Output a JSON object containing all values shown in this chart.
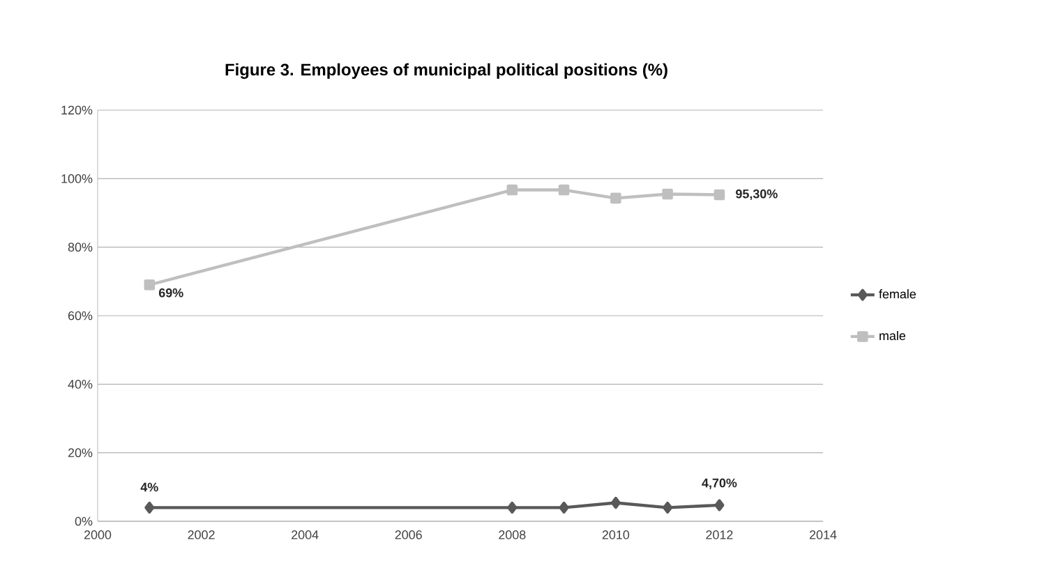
{
  "chart_data": {
    "type": "line",
    "title": "Figure 3. Employees of municipal political positions (%)",
    "x": [
      2001,
      2008,
      2009,
      2010,
      2011,
      2012
    ],
    "series": [
      {
        "name": "female",
        "color": "#595959",
        "marker": "diamond",
        "values": [
          4,
          4,
          4,
          5.4,
          4,
          4.7
        ],
        "value_labels": [
          "4%",
          null,
          null,
          null,
          null,
          "4,70%"
        ]
      },
      {
        "name": "male",
        "color": "#bfbfbf",
        "marker": "square",
        "values": [
          69,
          96.7,
          96.7,
          94.3,
          95.5,
          95.3
        ],
        "value_labels": [
          "69%",
          null,
          null,
          null,
          null,
          "95,30%"
        ]
      }
    ],
    "xlim": [
      2000,
      2014
    ],
    "xticks": [
      2000,
      2002,
      2004,
      2006,
      2008,
      2010,
      2012,
      2014
    ],
    "ylim": [
      0,
      120
    ],
    "yticks": [
      {
        "value": 0,
        "label": "0%"
      },
      {
        "value": 20,
        "label": "20%"
      },
      {
        "value": 40,
        "label": "40%"
      },
      {
        "value": 60,
        "label": "60%"
      },
      {
        "value": 80,
        "label": "80%"
      },
      {
        "value": 100,
        "label": "100%"
      },
      {
        "value": 120,
        "label": "120%"
      }
    ],
    "grid": "y",
    "legend": "right"
  }
}
